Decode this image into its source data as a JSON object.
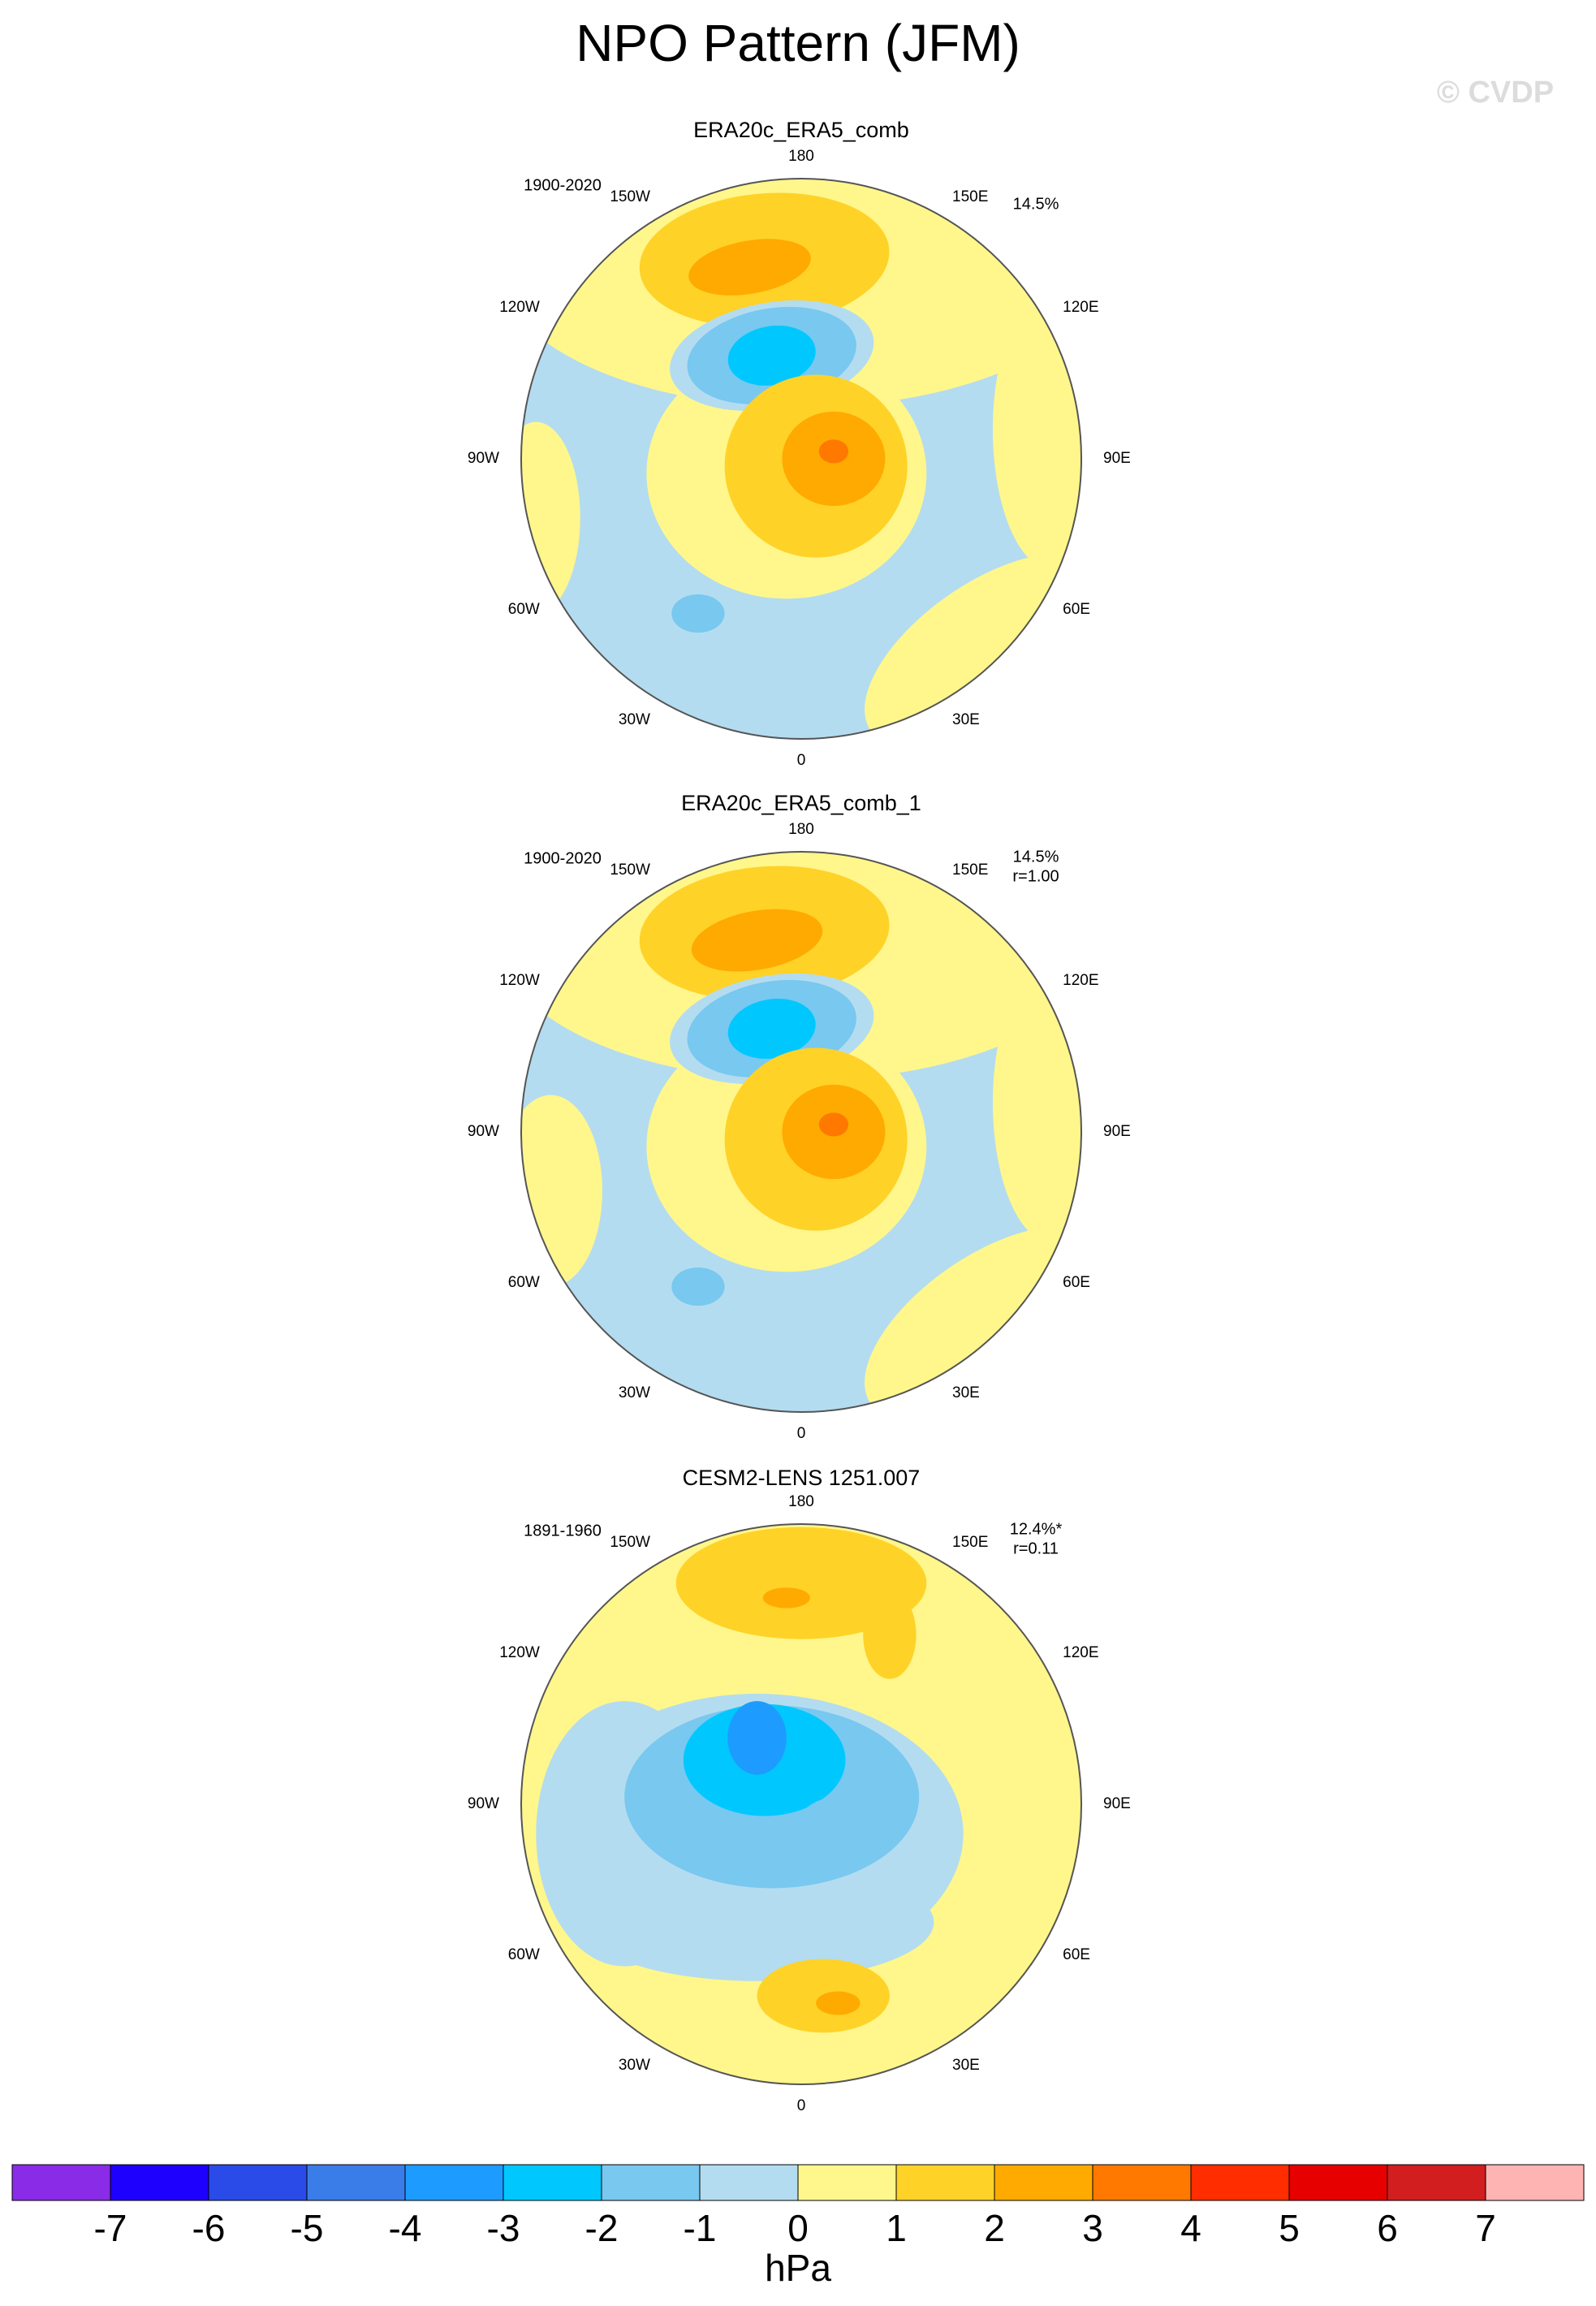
{
  "title": "NPO Pattern (JFM)",
  "watermark": "© CVDP",
  "panels": [
    {
      "title": "ERA20c_ERA5_comb",
      "period": "1900-2020",
      "variance": "14.5%"
    },
    {
      "title": "ERA20c_ERA5_comb_1",
      "period": "1900-2020",
      "variance": "14.5%",
      "correlation": "r=1.00"
    },
    {
      "title": "CESM2-LENS 1251.007",
      "period": "1891-1960",
      "variance": "12.4%*",
      "correlation": "r=0.11"
    }
  ],
  "longitude_labels": [
    "180",
    "150E",
    "120E",
    "90E",
    "60E",
    "30E",
    "0",
    "30W",
    "60W",
    "90W",
    "120W",
    "150W"
  ],
  "colorbar": {
    "label": "hPa",
    "colors": [
      "#8a2be8",
      "#1e00ff",
      "#2a4be8",
      "#3a7de8",
      "#1e9bff",
      "#00c8ff",
      "#78c8f0",
      "#b4dcf0",
      "#fff78c",
      "#ffd228",
      "#ffaa00",
      "#ff7800",
      "#ff2d00",
      "#e60000",
      "#d21e1e",
      "#ffb4b4"
    ],
    "ticks": [
      -7,
      -6,
      -5,
      -4,
      -3,
      -2,
      -1,
      0,
      1,
      2,
      3,
      4,
      5,
      6,
      7
    ]
  }
}
